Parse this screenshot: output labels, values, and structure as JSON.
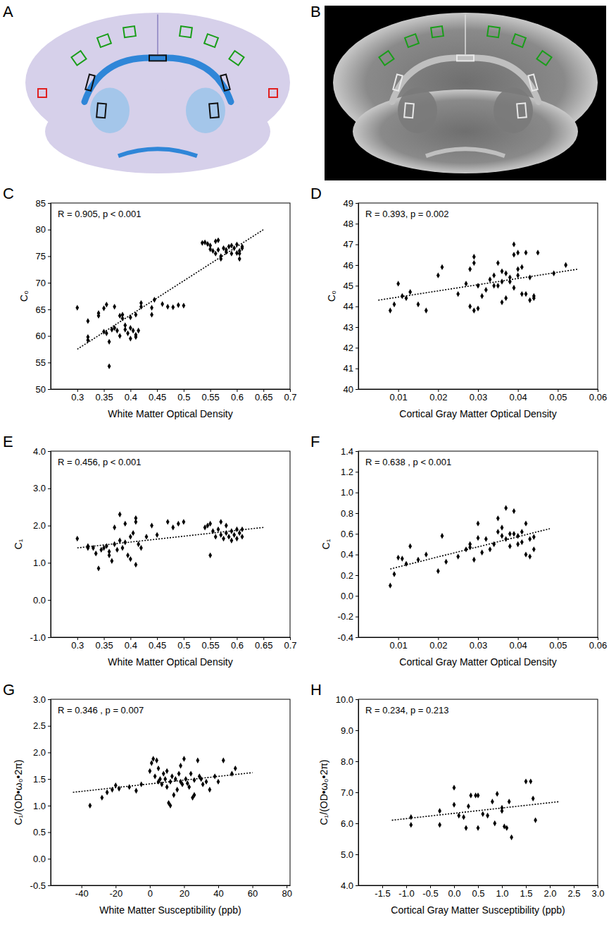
{
  "images": [
    {
      "panel": "A"
    },
    {
      "panel": "B"
    }
  ],
  "chart_data": [
    {
      "type": "scatter",
      "panel": "C",
      "annotation": "R = 0.905, p < 0.001",
      "x_label": "White Matter Optical Density",
      "y_label": "C₀",
      "color": "#000000",
      "marker": "diamond",
      "line_style": "dotted",
      "xlim": [
        0.25,
        0.7
      ],
      "ylim": [
        50,
        85
      ],
      "xticks": [
        0.3,
        0.35,
        0.4,
        0.45,
        0.5,
        0.55,
        0.6,
        0.65,
        0.7
      ],
      "yticks": [
        50,
        55,
        60,
        65,
        70,
        75,
        80,
        85
      ],
      "x": [
        0.3,
        0.32,
        0.32,
        0.32,
        0.34,
        0.34,
        0.35,
        0.35,
        0.355,
        0.355,
        0.36,
        0.36,
        0.365,
        0.37,
        0.37,
        0.375,
        0.38,
        0.38,
        0.385,
        0.385,
        0.39,
        0.39,
        0.395,
        0.4,
        0.4,
        0.4,
        0.405,
        0.41,
        0.41,
        0.41,
        0.415,
        0.42,
        0.42,
        0.44,
        0.44,
        0.445,
        0.46,
        0.47,
        0.48,
        0.49,
        0.5,
        0.535,
        0.54,
        0.545,
        0.55,
        0.55,
        0.555,
        0.56,
        0.56,
        0.565,
        0.565,
        0.57,
        0.57,
        0.575,
        0.58,
        0.58,
        0.585,
        0.59,
        0.59,
        0.595,
        0.6,
        0.6,
        0.605,
        0.605,
        0.61,
        0.61,
        0.605
      ],
      "values": [
        65.3,
        62.8,
        59.8,
        59.2,
        63.8,
        64.3,
        60.8,
        65.2,
        65.9,
        60.5,
        58.9,
        54.3,
        61.2,
        65.5,
        61.5,
        61.0,
        63.8,
        60.0,
        63.3,
        64.0,
        61.2,
        62.0,
        60.5,
        63.5,
        61.5,
        59.5,
        61.0,
        60.2,
        59.8,
        64.0,
        61.0,
        65.5,
        66.2,
        64.0,
        65.3,
        66.8,
        66.0,
        65.5,
        65.4,
        65.8,
        65.7,
        77.5,
        77.6,
        77.3,
        76.3,
        77.0,
        76.0,
        77.8,
        75.5,
        78.0,
        76.2,
        75.0,
        74.5,
        76.5,
        75.8,
        76.2,
        76.8,
        77.0,
        75.5,
        76.5,
        75.6,
        77.2,
        74.5,
        76.0,
        76.8,
        76.5,
        75.5
      ],
      "fit_line": {
        "x": [
          0.3,
          0.65
        ],
        "values": [
          57.5,
          80.0
        ]
      }
    },
    {
      "type": "scatter",
      "panel": "D",
      "annotation": "R = 0.393, p = 0.002",
      "x_label": "Cortical Gray Matter Optical Density",
      "y_label": "C₀",
      "color": "#000000",
      "marker": "diamond",
      "line_style": "dotted",
      "xlim": [
        0,
        0.06
      ],
      "ylim": [
        40,
        49
      ],
      "xticks": [
        0.01,
        0.02,
        0.03,
        0.04,
        0.05,
        0.06
      ],
      "yticks": [
        40,
        41,
        42,
        43,
        44,
        45,
        46,
        47,
        48,
        49
      ],
      "x": [
        0.008,
        0.009,
        0.01,
        0.011,
        0.012,
        0.013,
        0.015,
        0.017,
        0.02,
        0.021,
        0.025,
        0.027,
        0.028,
        0.028,
        0.029,
        0.029,
        0.029,
        0.03,
        0.03,
        0.031,
        0.032,
        0.033,
        0.034,
        0.035,
        0.035,
        0.036,
        0.036,
        0.037,
        0.037,
        0.038,
        0.038,
        0.039,
        0.039,
        0.039,
        0.04,
        0.04,
        0.04,
        0.041,
        0.041,
        0.042,
        0.042,
        0.043,
        0.043,
        0.044,
        0.044,
        0.045,
        0.049,
        0.052,
        0.034,
        0.036
      ],
      "values": [
        43.8,
        44.1,
        45.1,
        44.5,
        44.4,
        44.7,
        44.1,
        43.8,
        45.5,
        45.9,
        44.6,
        45.1,
        45.8,
        44.0,
        46.1,
        46.4,
        43.8,
        43.9,
        45.0,
        44.5,
        44.8,
        45.3,
        45.0,
        46.1,
        45.0,
        44.2,
        45.7,
        44.4,
        45.6,
        45.2,
        45.4,
        47.0,
        46.5,
        44.9,
        46.6,
        45.5,
        45.8,
        44.6,
        45.9,
        46.6,
        44.6,
        44.3,
        45.4,
        44.5,
        44.4,
        46.6,
        45.6,
        46.0,
        45.5,
        45.2
      ],
      "fit_line": {
        "x": [
          0.005,
          0.055
        ],
        "values": [
          44.3,
          45.8
        ]
      }
    },
    {
      "type": "scatter",
      "panel": "E",
      "annotation": "R = 0.456, p < 0.001",
      "x_label": "White Matter Optical Density",
      "y_label": "C₁",
      "color": "#000000",
      "marker": "diamond",
      "line_style": "dotted",
      "xlim": [
        0.25,
        0.7
      ],
      "ylim": [
        -1,
        4
      ],
      "xticks": [
        0.3,
        0.35,
        0.4,
        0.45,
        0.5,
        0.55,
        0.6,
        0.65,
        0.7
      ],
      "yticks": [
        {
          "value": -1,
          "label": "-1.0"
        },
        {
          "value": 0,
          "label": "0.0"
        },
        {
          "value": 1,
          "label": "1.0"
        },
        {
          "value": 2,
          "label": "2.0"
        },
        {
          "value": 3,
          "label": "3.0"
        },
        {
          "value": 4,
          "label": "4.0"
        }
      ],
      "x": [
        0.3,
        0.32,
        0.32,
        0.33,
        0.335,
        0.34,
        0.345,
        0.35,
        0.355,
        0.36,
        0.36,
        0.365,
        0.37,
        0.37,
        0.375,
        0.38,
        0.38,
        0.385,
        0.39,
        0.39,
        0.395,
        0.4,
        0.4,
        0.405,
        0.41,
        0.41,
        0.41,
        0.415,
        0.42,
        0.43,
        0.44,
        0.45,
        0.47,
        0.48,
        0.49,
        0.5,
        0.54,
        0.545,
        0.55,
        0.55,
        0.555,
        0.56,
        0.565,
        0.57,
        0.57,
        0.575,
        0.58,
        0.58,
        0.585,
        0.59,
        0.59,
        0.595,
        0.6,
        0.6,
        0.605,
        0.61,
        0.61
      ],
      "values": [
        1.65,
        1.45,
        1.4,
        1.4,
        1.25,
        0.85,
        1.35,
        1.4,
        1.45,
        1.3,
        1.2,
        1.05,
        1.95,
        1.5,
        1.35,
        2.3,
        1.6,
        1.4,
        2.05,
        1.55,
        1.2,
        1.1,
        1.7,
        1.8,
        2.2,
        2.1,
        0.95,
        1.5,
        1.4,
        1.7,
        2.0,
        1.75,
        2.1,
        1.95,
        2.05,
        2.1,
        1.95,
        2.0,
        2.05,
        1.2,
        1.85,
        1.7,
        1.9,
        2.1,
        1.75,
        1.65,
        1.8,
        2.0,
        1.7,
        1.85,
        1.6,
        1.75,
        1.9,
        1.65,
        1.8,
        1.9,
        1.7
      ],
      "fit_line": {
        "x": [
          0.3,
          0.65
        ],
        "values": [
          1.4,
          1.95
        ]
      }
    },
    {
      "type": "scatter",
      "panel": "F",
      "annotation": "R = 0.638 , p < 0.001",
      "x_label": "Cortical Gray Matter Optical Density",
      "y_label": "C₁",
      "color": "#000000",
      "marker": "diamond",
      "line_style": "dotted",
      "xlim": [
        0,
        0.06
      ],
      "ylim": [
        -0.4,
        1.4
      ],
      "xticks": [
        0.01,
        0.02,
        0.03,
        0.04,
        0.05,
        0.06
      ],
      "yticks": [
        -0.4,
        -0.2,
        {
          "value": 0,
          "label": "0.0"
        },
        0.2,
        0.4,
        0.6,
        0.8,
        {
          "value": 1,
          "label": "1.0"
        },
        1.2,
        1.4
      ],
      "x": [
        0.008,
        0.009,
        0.01,
        0.011,
        0.012,
        0.013,
        0.015,
        0.017,
        0.02,
        0.021,
        0.022,
        0.025,
        0.027,
        0.028,
        0.028,
        0.029,
        0.03,
        0.03,
        0.031,
        0.032,
        0.033,
        0.034,
        0.035,
        0.035,
        0.036,
        0.036,
        0.037,
        0.037,
        0.038,
        0.038,
        0.039,
        0.039,
        0.04,
        0.04,
        0.041,
        0.041,
        0.042,
        0.042,
        0.043,
        0.043,
        0.044,
        0.044
      ],
      "values": [
        0.1,
        0.21,
        0.37,
        0.36,
        0.31,
        0.48,
        0.35,
        0.4,
        0.24,
        0.58,
        0.33,
        0.38,
        0.45,
        0.5,
        0.47,
        0.35,
        0.7,
        0.56,
        0.42,
        0.55,
        0.45,
        0.5,
        0.75,
        0.62,
        0.58,
        0.66,
        0.85,
        0.55,
        0.6,
        0.48,
        0.82,
        0.6,
        0.5,
        0.58,
        0.52,
        0.62,
        0.7,
        0.4,
        0.55,
        0.38,
        0.45,
        0.57
      ],
      "fit_line": {
        "x": [
          0.008,
          0.048
        ],
        "values": [
          0.26,
          0.65
        ]
      }
    },
    {
      "type": "scatter",
      "panel": "G",
      "annotation": "R = 0.346 , p = 0.007",
      "x_label": "White Matter Susceptibility (ppb)",
      "y_label": "C₁/(OD•ω₀•2π)",
      "color": "#000000",
      "marker": "diamond",
      "line_style": "dotted",
      "xlim": [
        -58,
        82
      ],
      "ylim": [
        -0.5,
        3.0
      ],
      "xticks": [
        -40,
        -20,
        0,
        20,
        40,
        60,
        80
      ],
      "yticks": [
        -0.5,
        {
          "value": 0,
          "label": "0.0"
        },
        0.5,
        {
          "value": 1,
          "label": "1.0"
        },
        1.5,
        {
          "value": 2,
          "label": "2.0"
        },
        2.5,
        {
          "value": 3,
          "label": "3.0"
        }
      ],
      "x": [
        -35,
        -28,
        -25,
        -22,
        -20,
        -18,
        -12,
        -8,
        -5,
        0,
        1,
        2,
        3,
        4,
        5,
        5,
        7,
        8,
        9,
        10,
        11,
        12,
        13,
        14,
        15,
        16,
        17,
        18,
        19,
        20,
        21,
        22,
        23,
        24,
        25,
        26,
        28,
        29,
        30,
        31,
        33,
        35,
        38,
        40,
        43,
        48,
        50,
        12,
        10,
        26,
        6,
        18
      ],
      "values": [
        1.0,
        1.15,
        1.25,
        1.3,
        1.38,
        1.32,
        1.35,
        1.28,
        1.4,
        1.65,
        1.8,
        1.88,
        1.55,
        1.85,
        1.7,
        1.45,
        1.4,
        1.6,
        1.5,
        1.35,
        1.05,
        1.45,
        1.55,
        1.2,
        1.5,
        1.3,
        1.6,
        1.45,
        1.4,
        1.88,
        1.5,
        1.42,
        1.35,
        1.6,
        1.15,
        1.48,
        1.85,
        1.55,
        1.5,
        1.4,
        1.45,
        1.3,
        1.55,
        1.45,
        1.85,
        1.6,
        1.7,
        1.0,
        1.65,
        1.2,
        1.5,
        1.75
      ],
      "fit_line": {
        "x": [
          -45,
          60
        ],
        "values": [
          1.25,
          1.62
        ]
      }
    },
    {
      "type": "scatter",
      "panel": "H",
      "annotation": "R = 0.234, p = 0.213",
      "x_label": "Cortical Gray Matter Susceptibility (ppb)",
      "y_label": "C₁/(OD•ω₀•2π)",
      "color": "#000000",
      "marker": "diamond",
      "line_style": "dotted",
      "xlim": [
        -2.0,
        3.0
      ],
      "ylim": [
        4,
        10
      ],
      "xticks": [
        -1.5,
        {
          "value": -1,
          "label": "-1.0"
        },
        -0.5,
        {
          "value": 0,
          "label": "0.0"
        },
        0.5,
        {
          "value": 1,
          "label": "1.0"
        },
        1.5,
        {
          "value": 2,
          "label": "2.0"
        },
        2.5,
        {
          "value": 3,
          "label": "3.0"
        }
      ],
      "yticks": [
        {
          "value": 4,
          "label": "4.0"
        },
        {
          "value": 5,
          "label": "5.0"
        },
        {
          "value": 6,
          "label": "6.0"
        },
        {
          "value": 7,
          "label": "7.0"
        },
        {
          "value": 8,
          "label": "8.0"
        },
        {
          "value": 9,
          "label": "9.0"
        },
        {
          "value": 10,
          "label": "10.0"
        }
      ],
      "x": [
        -0.9,
        -0.9,
        -0.3,
        -0.3,
        0.0,
        0.0,
        0.1,
        0.2,
        0.25,
        0.3,
        0.35,
        0.45,
        0.5,
        0.5,
        0.6,
        0.7,
        0.8,
        0.85,
        0.9,
        1.0,
        1.0,
        1.05,
        1.1,
        1.15,
        1.2,
        1.5,
        1.6,
        1.65,
        1.7
      ],
      "values": [
        5.95,
        6.2,
        5.95,
        6.4,
        7.15,
        6.6,
        6.25,
        6.2,
        5.85,
        6.55,
        6.9,
        6.9,
        6.9,
        5.85,
        6.3,
        6.25,
        6.7,
        6.0,
        6.95,
        6.4,
        6.5,
        5.9,
        5.85,
        6.7,
        5.55,
        7.35,
        7.35,
        6.8,
        6.1
      ],
      "fit_line": {
        "x": [
          -1.3,
          2.2
        ],
        "values": [
          6.1,
          6.7
        ]
      }
    }
  ]
}
